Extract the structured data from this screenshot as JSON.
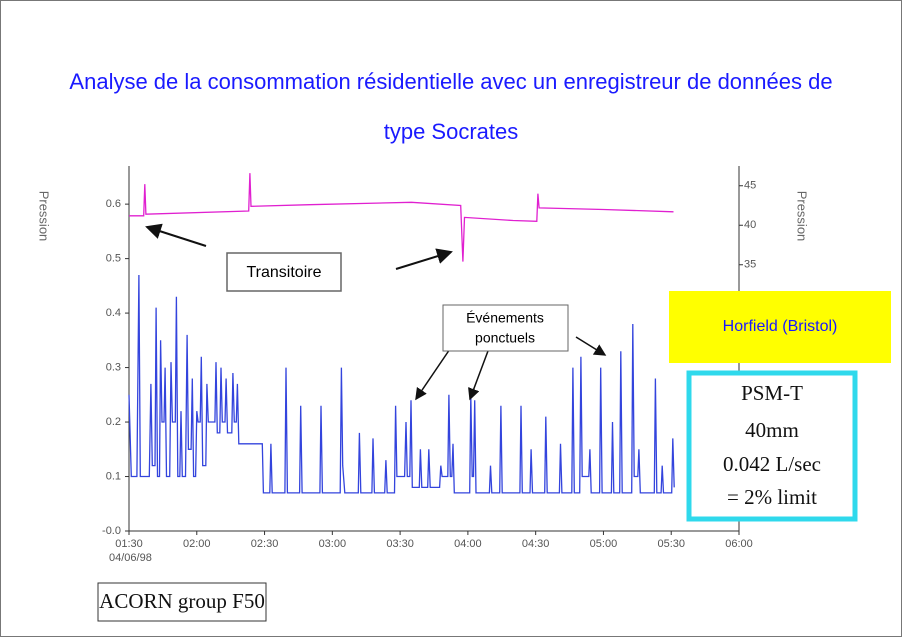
{
  "chart_data": {
    "type": "line",
    "title": "Analyse de la consommation résidentielle avec un enregistreur de données de type Socrates",
    "ylabel": "Pression",
    "y2label": "Pression",
    "date_label": "04/06/98",
    "xlim": [
      90,
      360
    ],
    "xticks": [
      {
        "value": 90,
        "label": "01:30"
      },
      {
        "value": 120,
        "label": "02:00"
      },
      {
        "value": 150,
        "label": "02:30"
      },
      {
        "value": 180,
        "label": "03:00"
      },
      {
        "value": 210,
        "label": "03:30"
      },
      {
        "value": 240,
        "label": "04:00"
      },
      {
        "value": 270,
        "label": "04:30"
      },
      {
        "value": 300,
        "label": "05:00"
      },
      {
        "value": 330,
        "label": "05:30"
      },
      {
        "value": 360,
        "label": "06:00"
      }
    ],
    "ylim": [
      0,
      0.67
    ],
    "yticks": [
      {
        "value": 0,
        "label": "-0.0"
      },
      0.1,
      0.2,
      0.3,
      0.4,
      0.5,
      0.6
    ],
    "y2lim": [
      1.3,
      47.5
    ],
    "y2ticks": [
      35,
      40,
      45
    ],
    "series": [
      {
        "color": "#3344dd",
        "x": [
          90,
          91,
          93.5,
          94.4,
          95,
          99,
          99.7,
          100.3,
          101.5,
          102,
          102.6,
          103.5,
          104,
          104.6,
          105.5,
          106,
          106.6,
          108,
          108.6,
          109.2,
          110.5,
          111,
          111.6,
          112.5,
          113,
          113.6,
          115,
          115.7,
          116.3,
          117.5,
          118,
          118.6,
          119.5,
          120,
          120.6,
          121.5,
          122,
          122.6,
          124,
          124.5,
          125.1,
          128,
          128.5,
          129.1,
          130.2,
          130.7,
          131.3,
          132.5,
          133,
          133.6,
          135.5,
          136,
          136.6,
          137.5,
          138,
          138.6,
          149,
          149.5,
          152.3,
          152.8,
          153.4,
          159,
          159.5,
          160.1,
          165.5,
          166,
          166.6,
          174.5,
          175,
          175.6,
          183.5,
          184,
          184.6,
          185.5,
          191.5,
          192,
          192.6,
          197.5,
          198,
          198.6,
          203.2,
          203.7,
          204.3,
          207.5,
          208,
          208.6,
          212,
          212.6,
          213.2,
          214.3,
          214.8,
          215.4,
          218.5,
          219,
          219.6,
          222.2,
          222.7,
          223.3,
          227.5,
          228,
          228.6,
          231.1,
          231.6,
          232.2,
          232.9,
          233.4,
          234,
          240.8,
          241.3,
          241.9,
          242.5,
          243,
          243.6,
          249.5,
          250,
          250.6,
          254.1,
          254.6,
          255.2,
          263,
          263.5,
          264.1,
          267.5,
          268,
          268.6,
          274,
          274.5,
          275.1,
          280.5,
          281,
          281.6,
          286,
          286.5,
          287.1,
          289.5,
          290,
          290.6,
          293.5,
          294,
          294.6,
          298.3,
          298.8,
          299.4,
          303.5,
          304,
          304.6,
          307.2,
          307.7,
          308.3,
          312.5,
          313,
          313.6,
          315.2,
          315.7,
          316.3,
          322.5,
          323,
          323.6,
          325.5,
          326,
          326.6,
          330.2,
          330.7,
          331.3
        ],
        "values": [
          0.25,
          0.1,
          0.1,
          0.47,
          0.1,
          0.1,
          0.27,
          0.12,
          0.12,
          0.41,
          0.1,
          0.1,
          0.35,
          0.2,
          0.2,
          0.3,
          0.1,
          0.1,
          0.31,
          0.2,
          0.2,
          0.43,
          0.1,
          0.1,
          0.22,
          0.1,
          0.1,
          0.36,
          0.15,
          0.15,
          0.28,
          0.1,
          0.1,
          0.22,
          0.2,
          0.2,
          0.32,
          0.12,
          0.12,
          0.27,
          0.2,
          0.2,
          0.31,
          0.18,
          0.18,
          0.3,
          0.2,
          0.2,
          0.28,
          0.18,
          0.18,
          0.29,
          0.2,
          0.2,
          0.27,
          0.16,
          0.16,
          0.07,
          0.07,
          0.16,
          0.07,
          0.07,
          0.3,
          0.07,
          0.07,
          0.23,
          0.07,
          0.07,
          0.23,
          0.07,
          0.07,
          0.3,
          0.12,
          0.07,
          0.07,
          0.18,
          0.07,
          0.07,
          0.17,
          0.07,
          0.07,
          0.13,
          0.07,
          0.07,
          0.23,
          0.1,
          0.1,
          0.2,
          0.1,
          0.1,
          0.24,
          0.08,
          0.08,
          0.15,
          0.08,
          0.08,
          0.15,
          0.08,
          0.08,
          0.12,
          0.1,
          0.1,
          0.25,
          0.1,
          0.1,
          0.16,
          0.07,
          0.07,
          0.25,
          0.1,
          0.1,
          0.24,
          0.07,
          0.07,
          0.12,
          0.07,
          0.07,
          0.23,
          0.07,
          0.07,
          0.23,
          0.07,
          0.07,
          0.15,
          0.07,
          0.07,
          0.21,
          0.07,
          0.07,
          0.16,
          0.07,
          0.07,
          0.3,
          0.07,
          0.07,
          0.32,
          0.1,
          0.1,
          0.15,
          0.07,
          0.07,
          0.3,
          0.07,
          0.07,
          0.2,
          0.07,
          0.07,
          0.33,
          0.07,
          0.07,
          0.38,
          0.1,
          0.1,
          0.15,
          0.07,
          0.07,
          0.28,
          0.07,
          0.07,
          0.12,
          0.07,
          0.07,
          0.17,
          0.08
        ]
      },
      {
        "color": "#e020d0",
        "axis": "y2",
        "x": [
          90,
          96.5,
          97,
          97.5,
          143,
          143.5,
          144,
          170,
          215,
          236.8,
          237.8,
          238.5,
          260,
          270.5,
          271,
          271.5,
          300,
          331
        ],
        "values": [
          41.2,
          41.2,
          45.2,
          41.4,
          41.8,
          46.6,
          42.4,
          42.6,
          42.9,
          42.5,
          35.4,
          41,
          40.6,
          40.5,
          44,
          42.2,
          42,
          41.7
        ]
      }
    ],
    "annotations": {
      "transient": "Transitoire",
      "events": [
        "Événements",
        "ponctuels"
      ],
      "site": "Horfield (Bristol)",
      "meter": [
        "PSM-T",
        "40mm",
        "0.042 L/sec",
        "= 2% limit"
      ],
      "acorn": "ACORN group F50"
    }
  }
}
